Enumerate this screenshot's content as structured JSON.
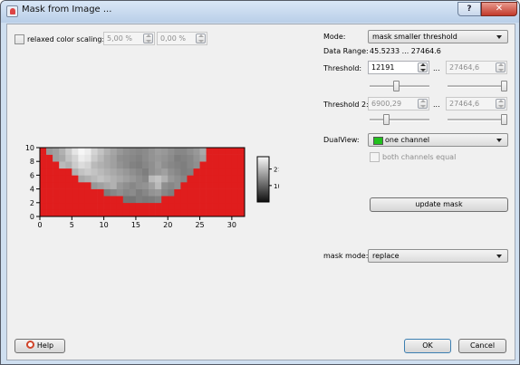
{
  "window": {
    "title": "Mask from Image ...",
    "help_glyph": "?",
    "close_glyph": "✕"
  },
  "left": {
    "relaxed_label": "relaxed color scaling:",
    "relaxed_checked": false,
    "relaxed_min": "5,00 %",
    "relaxed_max": "0,00 %"
  },
  "right": {
    "mode_label": "Mode:",
    "mode_value": "mask smaller threshold",
    "data_range_label": "Data Range:",
    "data_range_value": "45.5233 ... 27464.6",
    "threshold_label": "Threshold:",
    "threshold_value": "12191",
    "threshold_sep": "...",
    "threshold_max": "27464,6",
    "threshold_slider_fraction": 0.44,
    "threshold2_label": "Threshold 2:",
    "threshold2_value": "6900,29",
    "threshold2_sep": "...",
    "threshold2_max": "27464,6",
    "threshold2_slider_fraction": 0.25,
    "dualview_label": "DualView:",
    "dualview_value": "one channel",
    "dualview_swatch_color": "#22c01e",
    "both_channels_label": "both channels equal",
    "update_mask_label": "update mask",
    "mask_mode_label": "mask mode:",
    "mask_mode_value": "replace"
  },
  "footer": {
    "help_label": "Help",
    "ok_label": "OK",
    "cancel_label": "Cancel"
  },
  "colors": {
    "mask_red": "#e01d1d"
  },
  "chart_data": {
    "type": "heatmap",
    "x_ticks": [
      0,
      5,
      10,
      15,
      20,
      25,
      30
    ],
    "y_ticks": [
      0,
      2,
      4,
      6,
      8,
      10
    ],
    "xlim": [
      0,
      32
    ],
    "ylim": [
      0,
      10
    ],
    "colorbar_labels": [
      "2×10⁴",
      "10⁴"
    ],
    "colorbar_ticks": [
      20000,
      10000
    ],
    "colorbar_range": [
      45.5233,
      27464.6
    ],
    "colormap": "grayscale",
    "mask_color": "#e01d1d",
    "grid": [
      [
        -1,
        -1,
        -1,
        -1,
        -1,
        -1,
        -1,
        -1,
        -1,
        -1,
        -1,
        -1,
        -1,
        -1,
        -1,
        -1,
        -1,
        -1,
        -1,
        -1,
        -1,
        -1,
        -1,
        -1,
        -1,
        -1,
        -1,
        -1,
        -1,
        -1,
        -1,
        -1
      ],
      [
        -1,
        -1,
        -1,
        -1,
        -1,
        -1,
        -1,
        -1,
        -1,
        -1,
        -1,
        -1,
        -1,
        -1,
        -1,
        -1,
        -1,
        -1,
        -1,
        -1,
        -1,
        -1,
        -1,
        -1,
        -1,
        -1,
        -1,
        -1,
        -1,
        -1,
        -1,
        -1
      ],
      [
        -1,
        -1,
        -1,
        -1,
        -1,
        -1,
        -1,
        -1,
        -1,
        -1,
        -1,
        -1,
        -1,
        12000,
        12000,
        13000,
        12500,
        12800,
        13500,
        -1,
        -1,
        -1,
        -1,
        -1,
        -1,
        -1,
        -1,
        -1,
        -1,
        -1,
        -1,
        -1
      ],
      [
        -1,
        -1,
        -1,
        -1,
        -1,
        -1,
        -1,
        -1,
        -1,
        -1,
        13000,
        14000,
        15000,
        14000,
        14500,
        13000,
        14000,
        15500,
        16000,
        14000,
        13000,
        -1,
        -1,
        -1,
        -1,
        -1,
        -1,
        -1,
        -1,
        -1,
        -1,
        -1
      ],
      [
        -1,
        -1,
        -1,
        -1,
        -1,
        -1,
        -1,
        -1,
        16000,
        17000,
        18000,
        19000,
        16000,
        15000,
        14000,
        15000,
        15500,
        17000,
        20000,
        15000,
        14000,
        15000,
        -1,
        -1,
        -1,
        -1,
        -1,
        -1,
        -1,
        -1,
        -1,
        -1
      ],
      [
        -1,
        -1,
        -1,
        -1,
        -1,
        -1,
        18000,
        19000,
        20000,
        21000,
        20000,
        19000,
        18000,
        17000,
        16000,
        15000,
        14000,
        20000,
        21000,
        19000,
        16000,
        15000,
        14000,
        -1,
        -1,
        -1,
        -1,
        -1,
        -1,
        -1,
        -1,
        -1
      ],
      [
        -1,
        -1,
        -1,
        -1,
        -1,
        19000,
        21000,
        22000,
        21000,
        20000,
        19000,
        18000,
        17000,
        16000,
        15000,
        14000,
        13000,
        15000,
        16000,
        17000,
        15000,
        14000,
        13000,
        13500,
        -1,
        -1,
        -1,
        -1,
        -1,
        -1,
        -1,
        -1
      ],
      [
        -1,
        -1,
        -1,
        20000,
        19000,
        22000,
        24000,
        23000,
        20000,
        19000,
        18000,
        17000,
        15500,
        14500,
        13500,
        13000,
        14000,
        15000,
        16500,
        15000,
        14000,
        13500,
        13000,
        14000,
        15000,
        -1,
        -1,
        -1,
        -1,
        -1,
        -1,
        -1
      ],
      [
        -1,
        -1,
        17000,
        18000,
        21000,
        23000,
        26000,
        25000,
        22000,
        20000,
        18000,
        17000,
        15000,
        14500,
        14000,
        13500,
        14500,
        15500,
        16000,
        15500,
        14500,
        13000,
        13500,
        14000,
        15500,
        17000,
        -1,
        -1,
        -1,
        -1,
        -1,
        -1
      ],
      [
        -1,
        16000,
        17000,
        19000,
        22000,
        25000,
        27000,
        26000,
        23000,
        21000,
        19000,
        17500,
        16000,
        15000,
        14500,
        14000,
        14500,
        15500,
        16500,
        16000,
        15000,
        14000,
        14000,
        15000,
        16000,
        18000,
        -1,
        -1,
        -1,
        -1,
        -1,
        -1
      ]
    ]
  }
}
